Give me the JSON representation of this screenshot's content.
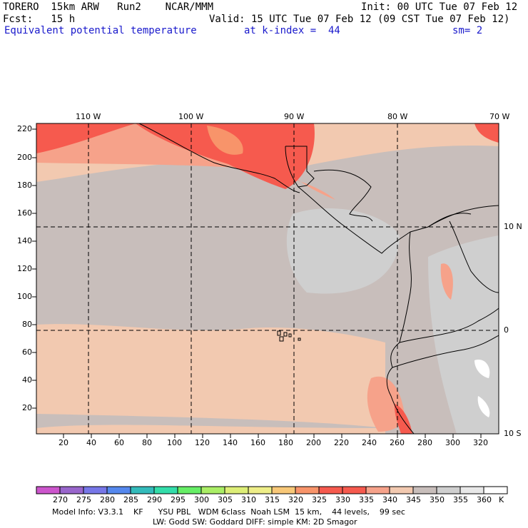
{
  "header": {
    "model_title": "TORERO  15km ARW   Run2    NCAR/MMM",
    "init_text": "Init: 00 UTC Tue 07 Feb 12",
    "fcst_text": "Fcst:   15 h",
    "valid_text": "Valid: 15 UTC Tue 07 Feb 12 (09 CST Tue 07 Feb 12)",
    "field_name": "Equivalent potential temperature",
    "kindex_text": "at k-index =  44",
    "sm_text": "sm= 2"
  },
  "map": {
    "lon_labels": [
      "110 W",
      "100 W",
      "90 W",
      "80 W",
      "70 W"
    ],
    "lat_labels": [
      "10 N",
      "0",
      "10 S"
    ],
    "y_ticks": [
      "220",
      "200",
      "180",
      "160",
      "140",
      "120",
      "100",
      "80",
      "60",
      "40",
      "20"
    ],
    "x_ticks": [
      "20",
      "40",
      "60",
      "80",
      "100",
      "120",
      "140",
      "160",
      "180",
      "200",
      "220",
      "240",
      "260",
      "280",
      "300",
      "320"
    ],
    "colors": {
      "background": "#c8bebb",
      "light": "#cfcfcf",
      "tan": "#f2c9b0",
      "salmon": "#f6a28a",
      "red": "#f65a4e",
      "orange": "#f8946a",
      "coast": "#000000",
      "white": "#ffffff"
    }
  },
  "colorbar": {
    "labels": [
      "270",
      "275",
      "280",
      "285",
      "290",
      "295",
      "300",
      "305",
      "310",
      "315",
      "320",
      "325",
      "330",
      "335",
      "340",
      "345",
      "350",
      "355",
      "360"
    ],
    "unit": "K",
    "colors": [
      "#cc55cc",
      "#9966cc",
      "#7777e8",
      "#5588ee",
      "#33bbbb",
      "#33ddaa",
      "#66ee66",
      "#aaee66",
      "#ddee77",
      "#eeee88",
      "#f8c878",
      "#f8946a",
      "#f65a4e",
      "#f65a4e",
      "#f6a28a",
      "#f2c9b0",
      "#c8bebb",
      "#cfcfcf",
      "#e8e8e8",
      "#ffffff"
    ]
  },
  "footer": {
    "line1": "Model Info: V3.3.1    KF      YSU PBL   WDM 6class  Noah LSM  15 km,    44 levels,    99 sec",
    "line2": "LW: Godd SW: Goddard DIFF: simple KM: 2D Smagor"
  }
}
